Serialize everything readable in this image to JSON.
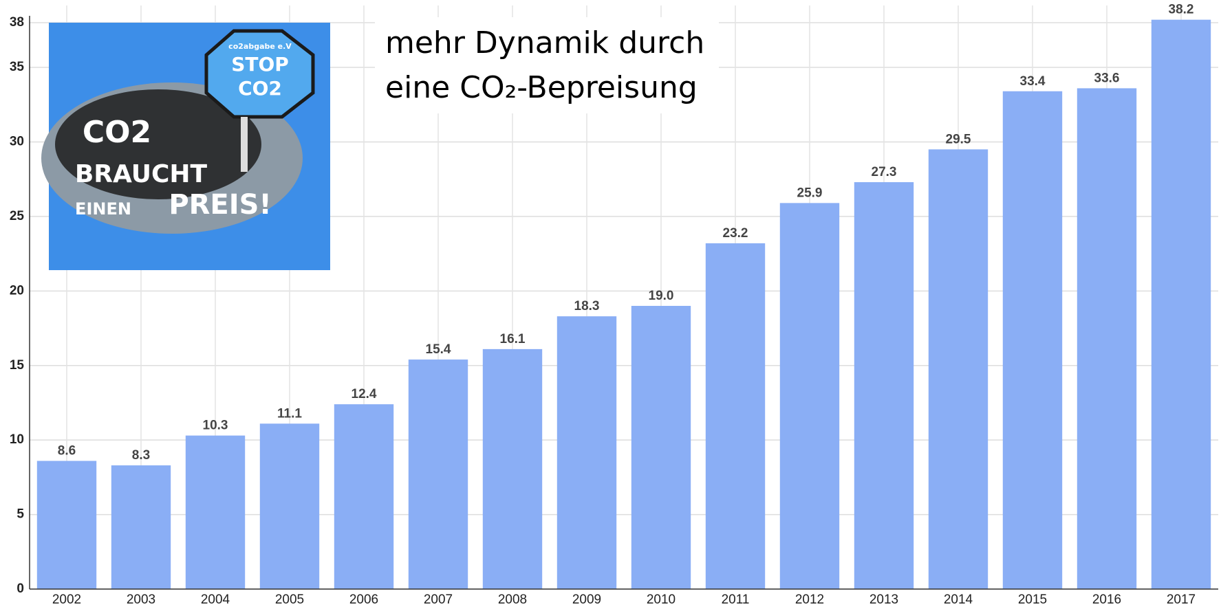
{
  "chart_data": {
    "type": "bar",
    "annotation": [
      "mehr Dynamik durch",
      "eine CO₂-Bepreisung"
    ],
    "image_texts": [
      "co2abgabe e.V",
      "STOP",
      "CO2",
      "CO2",
      "BRAUCHT",
      "EINEN",
      "PREIS!"
    ],
    "categories": [
      "2002",
      "2003",
      "2004",
      "2005",
      "2006",
      "2007",
      "2008",
      "2009",
      "2010",
      "2011",
      "2012",
      "2013",
      "2014",
      "2015",
      "2016",
      "2017"
    ],
    "values": [
      8.6,
      8.3,
      10.3,
      11.1,
      12.4,
      15.4,
      16.1,
      18.3,
      19.0,
      23.2,
      25.9,
      27.3,
      29.5,
      33.4,
      33.6,
      38.2
    ],
    "value_labels": [
      "8.6",
      "8.3",
      "10.3",
      "11.1",
      "12.4",
      "15.4",
      "16.1",
      "18.3",
      "19.0",
      "23.2",
      "25.9",
      "27.3",
      "29.5",
      "33.4",
      "33.6",
      "38.2"
    ],
    "color": "#8aaef5",
    "ylim": [
      0,
      38
    ],
    "yticks": [
      0,
      5,
      10,
      15,
      20,
      25,
      30,
      35,
      38
    ],
    "grid": true
  }
}
